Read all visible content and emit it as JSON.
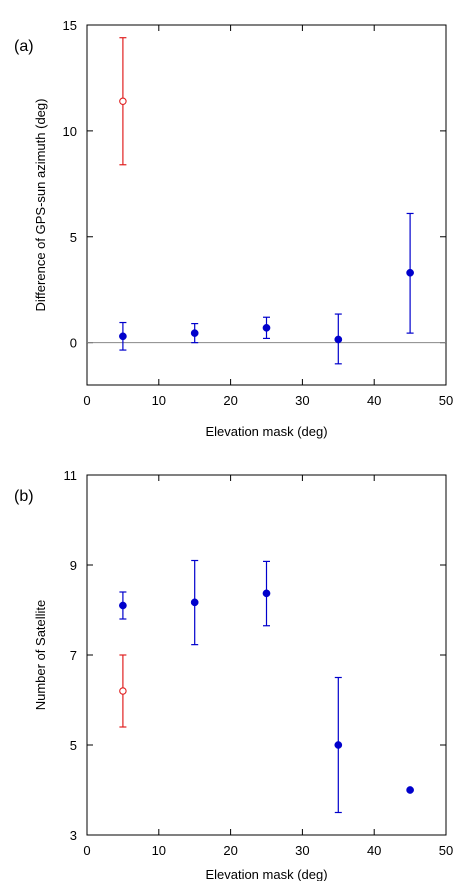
{
  "chart_data": [
    {
      "panel_label": "(a)",
      "type": "scatter",
      "xlabel": "Elevation mask (deg)",
      "ylabel": "Difference of GPS-sun azimuth (deg)",
      "xlim": [
        0,
        50
      ],
      "ylim": [
        -2,
        15
      ],
      "xticks": [
        0,
        10,
        20,
        30,
        40,
        50
      ],
      "yticks": [
        0,
        5,
        10,
        15
      ],
      "reference_line_y": 0,
      "series": [
        {
          "color": "#0000cc",
          "marker": "filled-circle",
          "points": [
            {
              "x": 5,
              "y": 0.3,
              "lo": -0.35,
              "hi": 0.95
            },
            {
              "x": 15,
              "y": 0.45,
              "lo": 0.0,
              "hi": 0.9
            },
            {
              "x": 25,
              "y": 0.7,
              "lo": 0.2,
              "hi": 1.2
            },
            {
              "x": 35,
              "y": 0.15,
              "lo": -1.0,
              "hi": 1.35
            },
            {
              "x": 45,
              "y": 3.3,
              "lo": 0.45,
              "hi": 6.1
            }
          ]
        },
        {
          "color": "#e02020",
          "marker": "open-circle",
          "points": [
            {
              "x": 5,
              "y": 11.4,
              "lo": 8.4,
              "hi": 14.4
            }
          ]
        }
      ]
    },
    {
      "panel_label": "(b)",
      "type": "scatter",
      "xlabel": "Elevation mask (deg)",
      "ylabel": "Number of Satellite",
      "xlim": [
        0,
        50
      ],
      "ylim": [
        3,
        11
      ],
      "xticks": [
        0,
        10,
        20,
        30,
        40,
        50
      ],
      "yticks": [
        3,
        5,
        7,
        9,
        11
      ],
      "series": [
        {
          "color": "#0000cc",
          "marker": "filled-circle",
          "points": [
            {
              "x": 5,
              "y": 8.1,
              "lo": 7.8,
              "hi": 8.4
            },
            {
              "x": 15,
              "y": 8.17,
              "lo": 7.23,
              "hi": 9.1
            },
            {
              "x": 25,
              "y": 8.37,
              "lo": 7.65,
              "hi": 9.08
            },
            {
              "x": 35,
              "y": 5.0,
              "lo": 3.5,
              "hi": 6.5
            },
            {
              "x": 45,
              "y": 4.0,
              "lo": null,
              "hi": null
            }
          ]
        },
        {
          "color": "#e02020",
          "marker": "open-circle",
          "points": [
            {
              "x": 5,
              "y": 6.2,
              "lo": 5.4,
              "hi": 7.0
            }
          ]
        }
      ]
    }
  ]
}
